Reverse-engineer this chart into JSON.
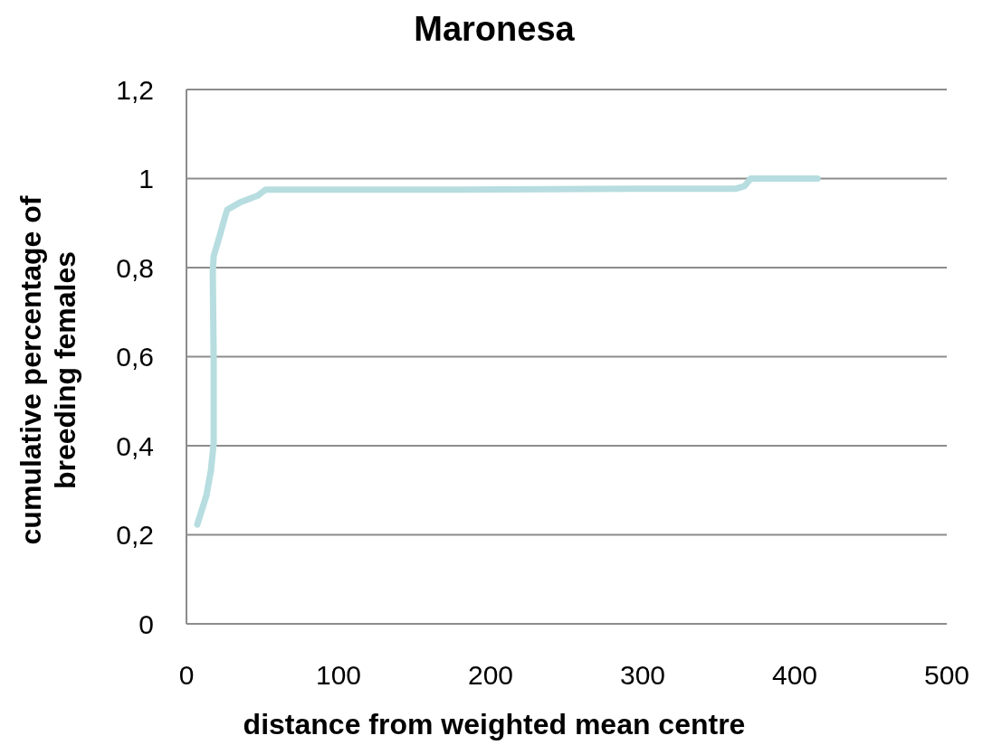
{
  "chart_data": {
    "type": "line",
    "title": "Maronesa",
    "xlabel": "distance from weighted mean centre",
    "ylabel": "cumulative percentage of breeding females",
    "x": [
      7.1,
      13.1,
      16.1,
      17.9,
      17.9,
      17.3,
      17.9,
      22,
      25,
      26.8,
      35,
      47,
      52,
      56,
      175,
      294,
      361,
      367,
      371,
      415
    ],
    "series": [
      {
        "color": "#b7dde0",
        "values": [
          0.223,
          0.288,
          0.345,
          0.406,
          0.589,
          0.792,
          0.826,
          0.873,
          0.91,
          0.93,
          0.946,
          0.962,
          0.975,
          0.975,
          0.975,
          0.977,
          0.977,
          0.983,
          1.0,
          1.0
        ]
      }
    ],
    "xlim": [
      0,
      500
    ],
    "xticks": [
      0,
      100,
      200,
      300,
      400,
      500
    ],
    "ylim": [
      0,
      1.2
    ],
    "yticks": [
      {
        "value": 0,
        "label": "0"
      },
      {
        "value": 0.2,
        "label": "0,2"
      },
      {
        "value": 0.4,
        "label": "0,4"
      },
      {
        "value": 0.6,
        "label": "0,6"
      },
      {
        "value": 0.8,
        "label": "0,8"
      },
      {
        "value": 1,
        "label": "1"
      },
      {
        "value": 1.2,
        "label": "1,2"
      }
    ],
    "grid": "y",
    "marker": "none",
    "line_style": "solid"
  }
}
